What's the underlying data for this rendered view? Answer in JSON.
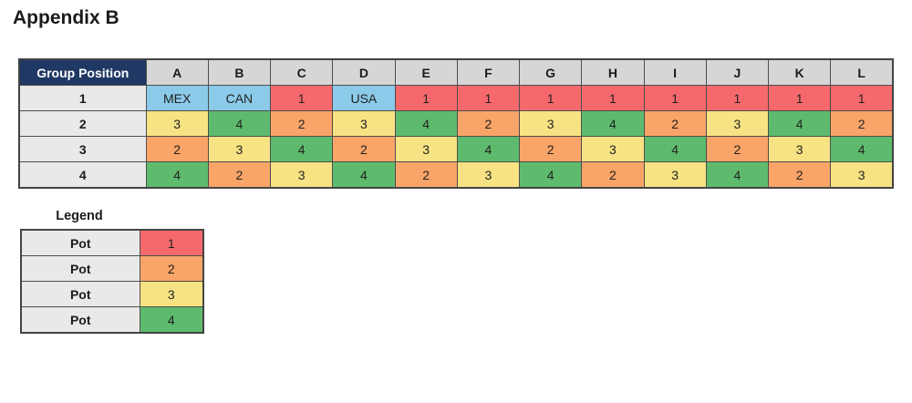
{
  "page": {
    "title": "Appendix B"
  },
  "colors": {
    "pot1": "#F5696C",
    "pot2": "#F9A468",
    "pot3": "#F7E383",
    "pot4": "#5EBB6D",
    "host": "#8BCAE9",
    "corner_bg": "#1F3864",
    "corner_text": "#FFFFFF",
    "group_header_bg": "#D6D6D6",
    "row_label_bg": "#E9E9E9",
    "legend_label_bg": "#E9E9E9"
  },
  "table": {
    "corner_header": "Group Position",
    "group_headers": [
      "A",
      "B",
      "C",
      "D",
      "E",
      "F",
      "G",
      "H",
      "I",
      "J",
      "K",
      "L"
    ],
    "rows": [
      {
        "position": "1",
        "cells": [
          {
            "text": "MEX",
            "pot": "host"
          },
          {
            "text": "CAN",
            "pot": "host"
          },
          {
            "text": "1",
            "pot": "pot1"
          },
          {
            "text": "USA",
            "pot": "host"
          },
          {
            "text": "1",
            "pot": "pot1"
          },
          {
            "text": "1",
            "pot": "pot1"
          },
          {
            "text": "1",
            "pot": "pot1"
          },
          {
            "text": "1",
            "pot": "pot1"
          },
          {
            "text": "1",
            "pot": "pot1"
          },
          {
            "text": "1",
            "pot": "pot1"
          },
          {
            "text": "1",
            "pot": "pot1"
          },
          {
            "text": "1",
            "pot": "pot1"
          }
        ]
      },
      {
        "position": "2",
        "cells": [
          {
            "text": "3",
            "pot": "pot3"
          },
          {
            "text": "4",
            "pot": "pot4"
          },
          {
            "text": "2",
            "pot": "pot2"
          },
          {
            "text": "3",
            "pot": "pot3"
          },
          {
            "text": "4",
            "pot": "pot4"
          },
          {
            "text": "2",
            "pot": "pot2"
          },
          {
            "text": "3",
            "pot": "pot3"
          },
          {
            "text": "4",
            "pot": "pot4"
          },
          {
            "text": "2",
            "pot": "pot2"
          },
          {
            "text": "3",
            "pot": "pot3"
          },
          {
            "text": "4",
            "pot": "pot4"
          },
          {
            "text": "2",
            "pot": "pot2"
          }
        ]
      },
      {
        "position": "3",
        "cells": [
          {
            "text": "2",
            "pot": "pot2"
          },
          {
            "text": "3",
            "pot": "pot3"
          },
          {
            "text": "4",
            "pot": "pot4"
          },
          {
            "text": "2",
            "pot": "pot2"
          },
          {
            "text": "3",
            "pot": "pot3"
          },
          {
            "text": "4",
            "pot": "pot4"
          },
          {
            "text": "2",
            "pot": "pot2"
          },
          {
            "text": "3",
            "pot": "pot3"
          },
          {
            "text": "4",
            "pot": "pot4"
          },
          {
            "text": "2",
            "pot": "pot2"
          },
          {
            "text": "3",
            "pot": "pot3"
          },
          {
            "text": "4",
            "pot": "pot4"
          }
        ]
      },
      {
        "position": "4",
        "cells": [
          {
            "text": "4",
            "pot": "pot4"
          },
          {
            "text": "2",
            "pot": "pot2"
          },
          {
            "text": "3",
            "pot": "pot3"
          },
          {
            "text": "4",
            "pot": "pot4"
          },
          {
            "text": "2",
            "pot": "pot2"
          },
          {
            "text": "3",
            "pot": "pot3"
          },
          {
            "text": "4",
            "pot": "pot4"
          },
          {
            "text": "2",
            "pot": "pot2"
          },
          {
            "text": "3",
            "pot": "pot3"
          },
          {
            "text": "4",
            "pot": "pot4"
          },
          {
            "text": "2",
            "pot": "pot2"
          },
          {
            "text": "3",
            "pot": "pot3"
          }
        ]
      }
    ]
  },
  "legend": {
    "title": "Legend",
    "rows": [
      {
        "label": "Pot",
        "value": "1",
        "pot": "pot1"
      },
      {
        "label": "Pot",
        "value": "2",
        "pot": "pot2"
      },
      {
        "label": "Pot",
        "value": "3",
        "pot": "pot3"
      },
      {
        "label": "Pot",
        "value": "4",
        "pot": "pot4"
      }
    ]
  }
}
